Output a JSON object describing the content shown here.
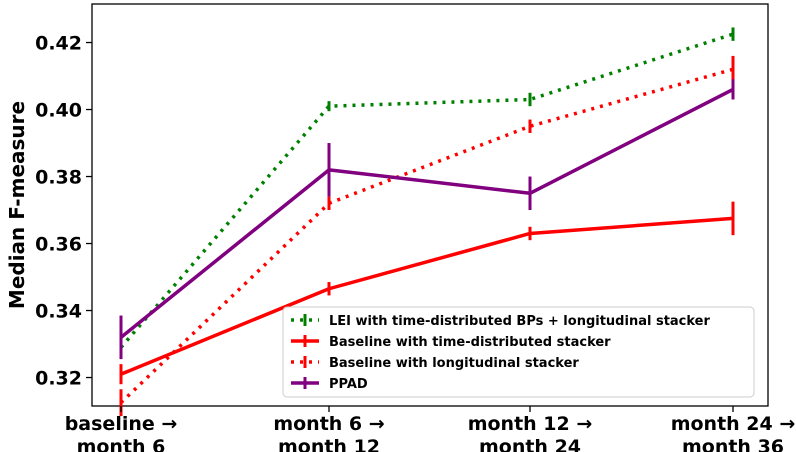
{
  "chart_data": {
    "type": "line",
    "categories": [
      [
        "baseline →",
        "month 6"
      ],
      [
        "month 6 →",
        "month 12"
      ],
      [
        "month 12 →",
        "month 24"
      ],
      [
        "month 24 →",
        "month 36"
      ]
    ],
    "ylabel": "Median F-measure",
    "xlabel": "",
    "ylim": [
      0.3115,
      0.4315
    ],
    "yticks": [
      0.32,
      0.34,
      0.36,
      0.38,
      0.4,
      0.42
    ],
    "ytick_labels": [
      "0.32",
      "0.34",
      "0.36",
      "0.38",
      "0.40",
      "0.42"
    ],
    "grid": false,
    "legend_position": "lower-right",
    "series": [
      {
        "name": "LEI with time-distributed BPs + longitudinal stacker",
        "color": "#008000",
        "style": "dotted",
        "values": [
          0.329,
          0.401,
          0.403,
          0.4225
        ],
        "err": [
          0.002,
          0.0015,
          0.002,
          0.002
        ]
      },
      {
        "name": "Baseline with time-distributed stacker",
        "color": "#ff0000",
        "style": "solid",
        "values": [
          0.321,
          0.3465,
          0.363,
          0.3675
        ],
        "err": [
          0.003,
          0.002,
          0.002,
          0.005
        ]
      },
      {
        "name": "Baseline with longitudinal stacker",
        "color": "#ff0000",
        "style": "dotted",
        "values": [
          0.3125,
          0.372,
          0.395,
          0.412
        ],
        "err": [
          0.004,
          0.002,
          0.002,
          0.004
        ]
      },
      {
        "name": "PPAD",
        "color": "#800080",
        "style": "solid",
        "values": [
          0.332,
          0.382,
          0.375,
          0.406
        ],
        "err": [
          0.0065,
          0.008,
          0.005,
          0.003
        ]
      }
    ]
  }
}
